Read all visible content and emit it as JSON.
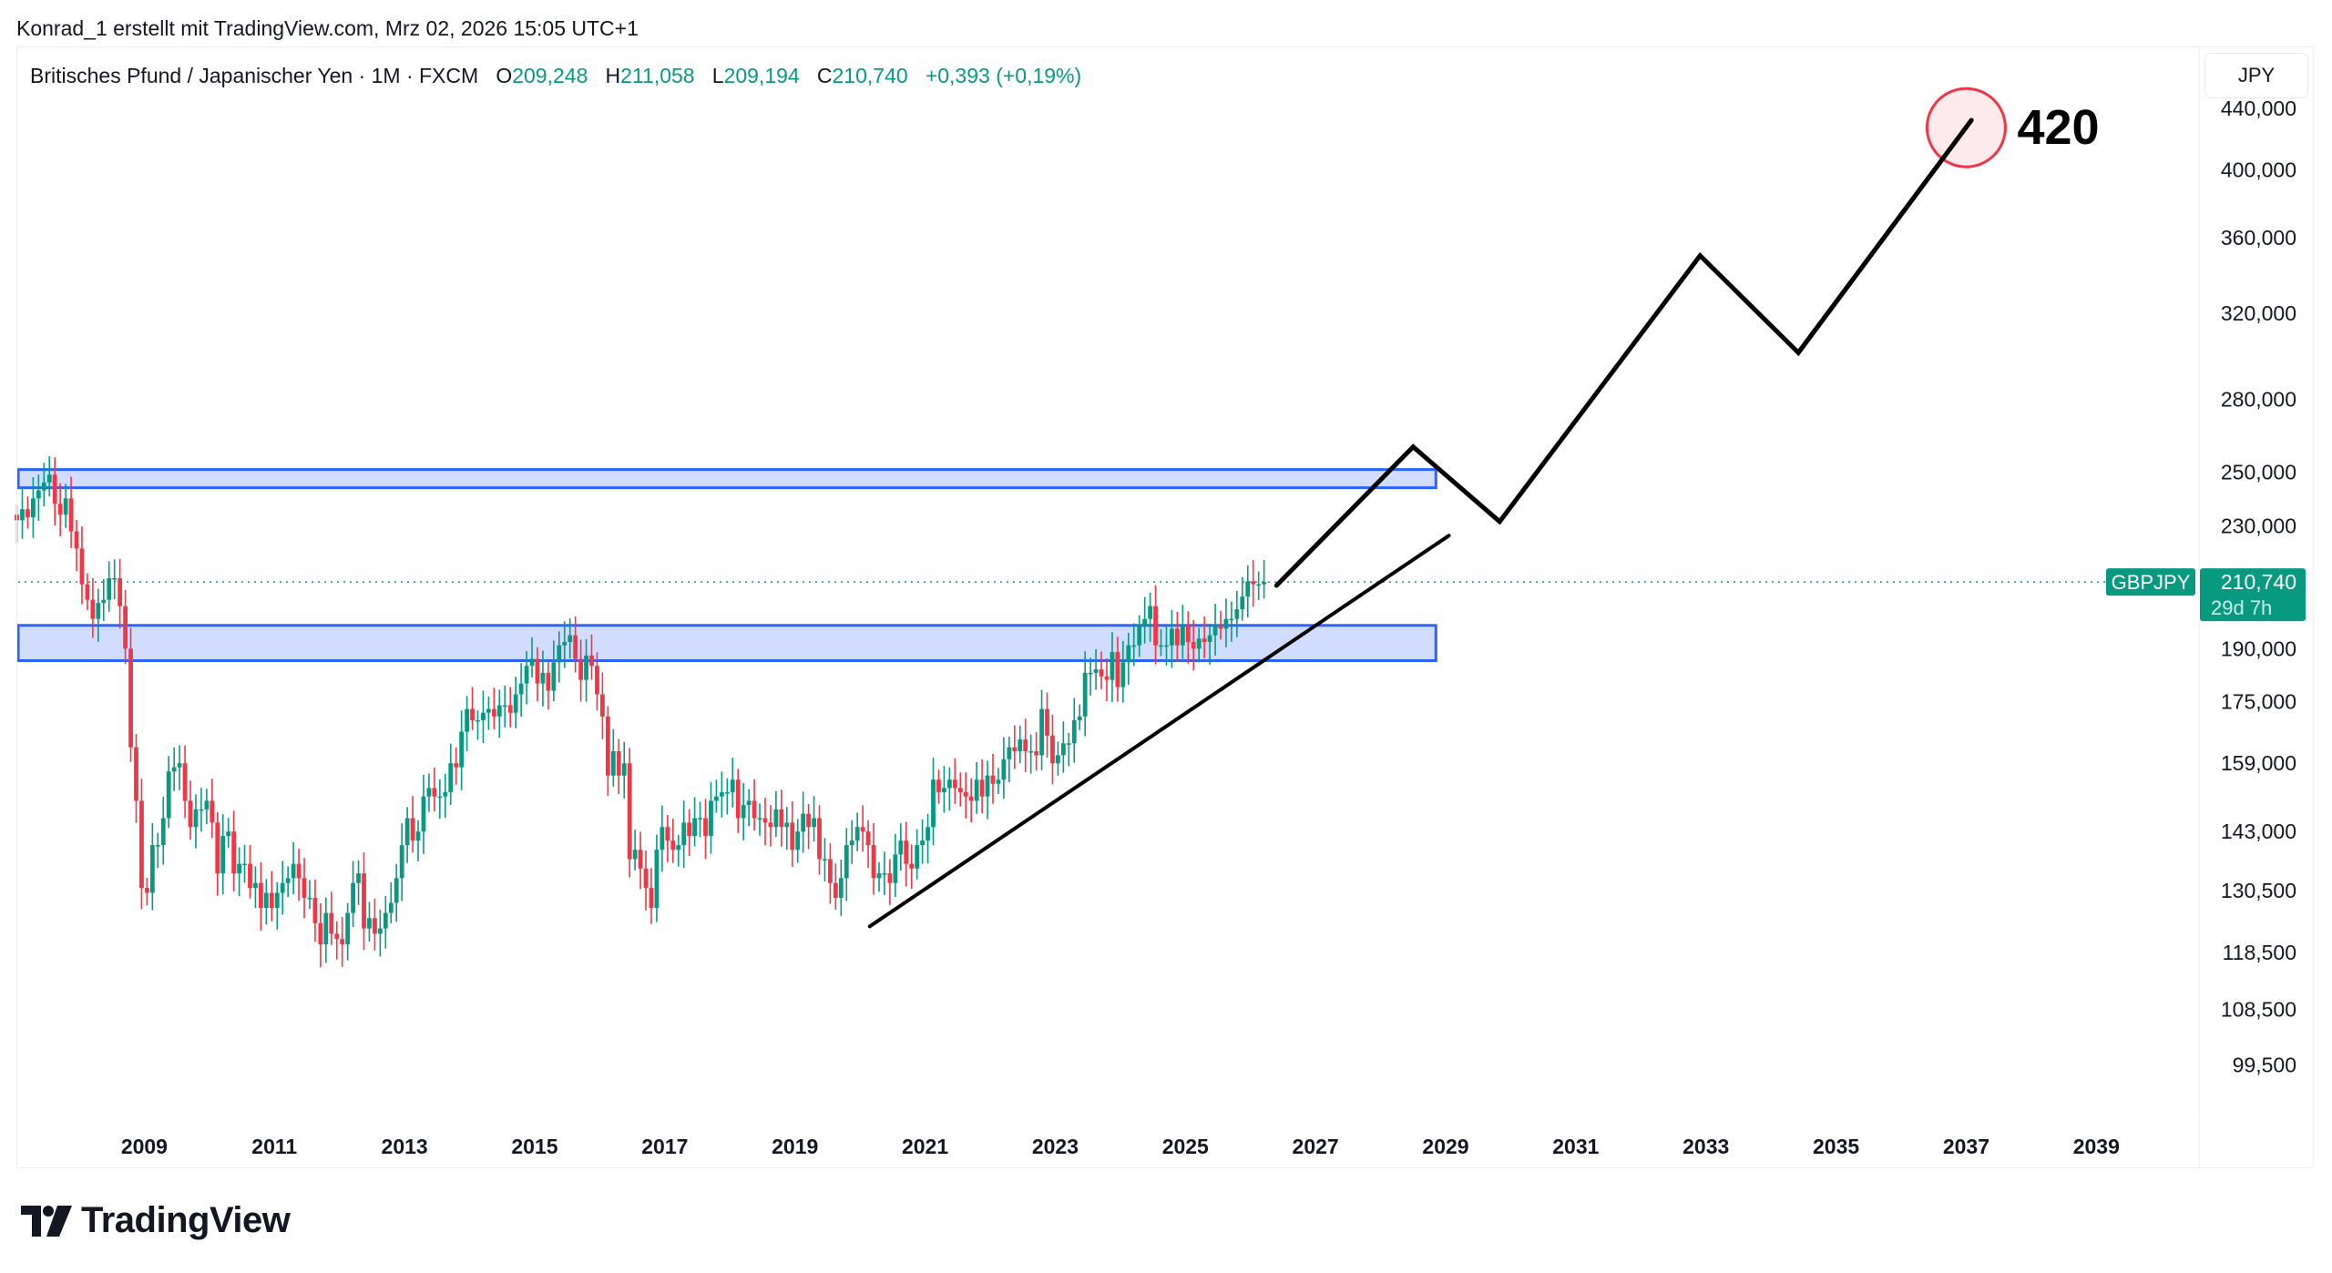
{
  "credit": "Konrad_1 erstellt mit TradingView.com, Mrz 02, 2026 15:05 UTC+1",
  "legend": {
    "symbol_desc": "Britisches Pfund / Japanischer Yen · 1M · FXCM",
    "o_label": "O",
    "o_value": "209,248",
    "h_label": "H",
    "h_value": "211,058",
    "l_label": "L",
    "l_value": "209,194",
    "c_label": "C",
    "c_value": "210,740",
    "change": "+0,393 (+0,19%)"
  },
  "currency_button": "JPY",
  "price_label": {
    "symbol": "GBPJPY",
    "price": "210,740",
    "countdown": "29d 7h"
  },
  "brand": "TradingView",
  "annotation": {
    "text": "420",
    "circle_year": 2037.0,
    "circle_price": 427
  },
  "colors": {
    "up": "#089981",
    "down": "#F23645",
    "zone_fill": "#D2DCFE",
    "zone_border": "#2962FF",
    "drawing": "#000000",
    "circle": "#F23645",
    "circle_fill": "#FDE5E8"
  },
  "chart_data": {
    "type": "candlestick",
    "interval": "1M",
    "start": "2007-01",
    "y_scale": "log",
    "ylim": [
      91000,
      470000
    ],
    "xlim": [
      2007.0,
      2041.0
    ],
    "y_ticks": [
      {
        "value": 440000,
        "label": "440,000"
      },
      {
        "value": 400000,
        "label": "400,000"
      },
      {
        "value": 360000,
        "label": "360,000"
      },
      {
        "value": 320000,
        "label": "320,000"
      },
      {
        "value": 280000,
        "label": "280,000"
      },
      {
        "value": 250000,
        "label": "250,000"
      },
      {
        "value": 230000,
        "label": "230,000"
      },
      {
        "value": 190000,
        "label": "190,000"
      },
      {
        "value": 175000,
        "label": "175,000"
      },
      {
        "value": 159000,
        "label": "159,000"
      },
      {
        "value": 143000,
        "label": "143,000"
      },
      {
        "value": 130500,
        "label": "130,500"
      },
      {
        "value": 118500,
        "label": "118,500"
      },
      {
        "value": 108500,
        "label": "108,500"
      },
      {
        "value": 99500,
        "label": "99,500"
      }
    ],
    "x_ticks": [
      "2009",
      "2011",
      "2013",
      "2015",
      "2017",
      "2019",
      "2021",
      "2023",
      "2025",
      "2027",
      "2029",
      "2031",
      "2033",
      "2035",
      "2037",
      "2039"
    ],
    "first_open": 234,
    "closes": [
      232,
      236,
      233,
      240,
      243,
      246,
      249,
      238,
      234,
      240,
      228,
      222,
      210,
      205,
      199,
      204,
      205,
      212,
      212,
      203,
      190,
      163,
      150,
      131,
      130,
      140,
      140,
      146,
      157,
      158,
      159,
      150,
      144,
      148,
      148,
      150,
      145,
      134,
      142,
      143,
      134,
      136,
      136,
      131,
      132,
      127,
      130,
      127,
      130,
      132,
      133,
      136,
      133,
      129,
      129,
      124,
      120,
      126,
      122,
      121,
      120,
      126,
      132,
      134,
      123,
      125,
      122,
      123,
      126,
      128,
      133,
      140,
      146,
      141,
      143,
      151,
      153,
      151,
      151,
      152,
      159,
      158,
      167,
      173,
      170,
      170,
      172,
      173,
      171,
      174,
      174,
      172,
      177,
      180,
      185,
      187,
      180,
      183,
      178,
      186,
      191,
      192,
      194,
      187,
      181,
      188,
      185,
      177,
      171,
      156,
      162,
      156,
      159,
      137,
      139,
      135,
      131,
      127,
      139,
      144,
      141,
      139,
      140,
      145,
      142,
      146,
      146,
      142,
      150,
      151,
      152,
      152,
      155,
      146,
      149,
      150,
      146,
      146,
      145,
      144,
      148,
      144,
      145,
      139,
      143,
      147,
      144,
      146,
      137,
      137,
      132,
      129,
      133,
      140,
      141,
      144,
      143,
      140,
      133,
      134,
      134,
      132,
      138,
      141,
      136,
      135,
      140,
      141,
      144,
      155,
      152,
      153,
      155,
      153,
      152,
      151,
      150,
      155,
      151,
      156,
      154,
      155,
      160,
      163,
      162,
      165,
      162,
      162,
      161,
      173,
      166,
      159,
      161,
      164,
      164,
      170,
      171,
      183,
      183,
      184,
      182,
      181,
      189,
      179,
      186,
      191,
      191,
      197,
      199,
      203,
      191,
      191,
      191,
      196,
      191,
      197,
      192,
      190,
      193,
      192,
      194,
      197,
      196,
      199,
      199,
      202,
      206,
      211,
      210,
      210,
      210.74
    ],
    "last_price": 210.74,
    "zones": [
      {
        "top": 251,
        "bottom": 244,
        "end_year": 2028.85
      },
      {
        "top": 197,
        "bottom": 186.5,
        "end_year": 2028.85
      }
    ],
    "trendline": [
      [
        2020.15,
        123.4
      ],
      [
        2029.05,
        226.5
      ]
    ],
    "projection": [
      [
        2026.4,
        209.6
      ],
      [
        2028.5,
        260
      ],
      [
        2029.83,
        231.5
      ],
      [
        2032.91,
        350
      ],
      [
        2034.42,
        301
      ],
      [
        2037.08,
        432
      ]
    ]
  }
}
